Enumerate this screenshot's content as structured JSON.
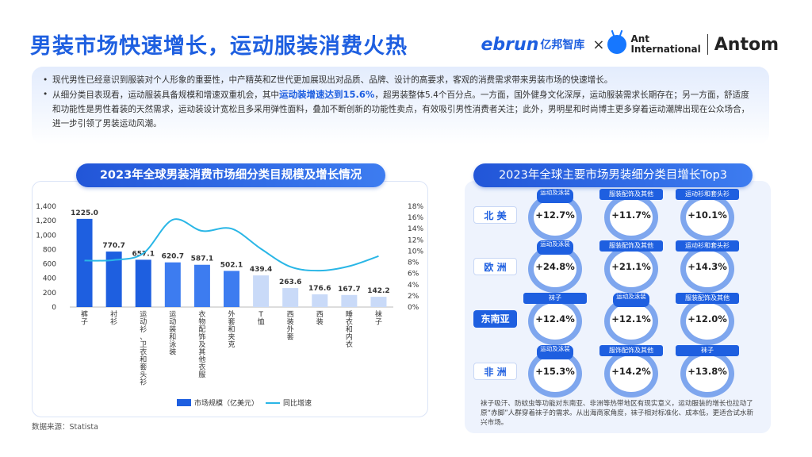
{
  "page_title": "男装市场快速增长，运动服装消费火热",
  "logos": {
    "ebrun": "ebrun",
    "ebrun_cn": "亿邦智库",
    "x": "×",
    "ant_line1": "Ant",
    "ant_line2": "International",
    "antom": "Antom"
  },
  "intro": {
    "p1": "现代男性已经意识到服装对个人形象的重要性，中产精英和Z世代更加展现出对品质、品牌、设计的高要求，客观的消费需求带来男装市场的快速增长。",
    "p2_a": "从细分类目表现看，运动服装具备规模和增速双重机会，其中",
    "p2_hl": "运动装增速达到15.6%",
    "p2_b": "，超男装整体5.4个百分点。一方面，国外健身文化深厚，运动服装需求长期存在；另一方面，舒适度和功能性是男性着装的天然需求，运动装设计宽松且多采用弹性面料，叠加不断创新的功能性卖点，有效吸引男性消费者关注；此外，男明星和时尚博主更多穿着运动潮牌出现在公众场合，进一步引领了男装运动风潮。"
  },
  "left_title": "2023年全球男装消费市场细分类目规模及增长情况",
  "right_title": "2023年全球主要市场男装细分类目增长Top3",
  "chart_data": {
    "type": "bar",
    "categories": [
      "裤子",
      "衬衫",
      "运动衫、卫衣和套头衫",
      "运动装和泳装",
      "衣物配饰及其他衣服",
      "外套和夹克",
      "T恤",
      "西装外套",
      "西装",
      "睡衣和内衣",
      "袜子"
    ],
    "series": [
      {
        "name": "市场规模（亿美元）",
        "type": "bar",
        "values": [
          1225.0,
          770.7,
          657.1,
          620.7,
          587.1,
          502.1,
          439.4,
          263.6,
          176.6,
          167.7,
          142.2
        ]
      },
      {
        "name": "同比增速",
        "type": "line",
        "values": [
          8.3,
          8.4,
          9.6,
          15.6,
          13.6,
          14.0,
          10.4,
          7.2,
          6.5,
          7.3,
          9.1
        ]
      }
    ],
    "value_labels": [
      "1225.0",
      "770.7",
      "657.1",
      "620.7",
      "587.1",
      "502.1",
      "439.4",
      "263.6",
      "176.6",
      "167.7",
      "142.2"
    ],
    "y_left_ticks": [
      "0",
      "200",
      "400",
      "600",
      "800",
      "1,000",
      "1,200",
      "1,400"
    ],
    "y_right_ticks": [
      "0%",
      "2%",
      "4%",
      "6%",
      "8%",
      "10%",
      "12%",
      "14%",
      "16%",
      "18%"
    ],
    "ylim_left": [
      0,
      1400
    ],
    "ylim_right": [
      0,
      18
    ],
    "bar_colors": [
      "#1e5fe0",
      "#1e5fe0",
      "#1e5fe0",
      "#3d7cf0",
      "#3d7cf0",
      "#3d7cf0",
      "#c9daf8",
      "#c9daf8",
      "#c9daf8",
      "#c9daf8",
      "#c9daf8"
    ],
    "line_color": "#29b6e6",
    "legend": [
      "市场规模（亿美元）",
      "同比增速"
    ],
    "legend_position": "bottom"
  },
  "regions": [
    {
      "name": "北 美",
      "style": "light",
      "cats": [
        {
          "label": "运动及泳装",
          "value": "+12.7%"
        },
        {
          "label": "服装配饰及其他",
          "value": "+11.7%"
        },
        {
          "label": "运动衫和套头衫",
          "value": "+10.1%"
        }
      ]
    },
    {
      "name": "欧 洲",
      "style": "light",
      "cats": [
        {
          "label": "运动及泳装",
          "value": "+24.8%"
        },
        {
          "label": "服装配饰及其他",
          "value": "+21.1%"
        },
        {
          "label": "运动衫和套头衫",
          "value": "+14.3%"
        }
      ]
    },
    {
      "name": "东南亚",
      "style": "dark",
      "cats": [
        {
          "label": "袜子",
          "value": "+12.4%"
        },
        {
          "label": "运动及泳装",
          "value": "+12.1%"
        },
        {
          "label": "服装配饰及其他",
          "value": "+12.0%"
        }
      ]
    },
    {
      "name": "非 洲",
      "style": "light",
      "cats": [
        {
          "label": "运动及泳装",
          "value": "+15.3%"
        },
        {
          "label": "服饰配饰及其他",
          "value": "+14.2%"
        },
        {
          "label": "袜子",
          "value": "+13.8%"
        }
      ]
    }
  ],
  "note": "袜子吸汗、防蚊虫等功能对东南亚、非洲等热带地区有现实意义，运动服装的增长也拉动了原“赤脚”人群穿着袜子的需求。从出海商家角度，袜子相对标准化、成本低，更适合试水新兴市场。",
  "source": "数据来源：Statista",
  "colors": {
    "brand": "#1e5fe0",
    "ring": "#7ea6ee",
    "panel": "#eef3fd"
  }
}
